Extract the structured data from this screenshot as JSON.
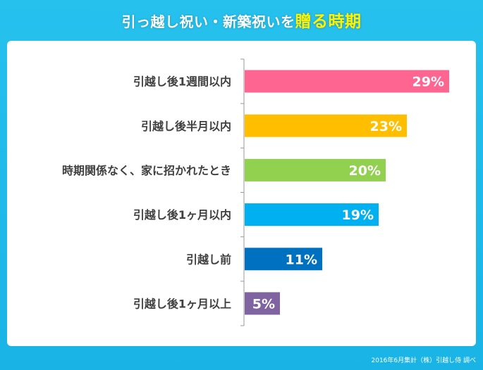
{
  "title": {
    "prefix": "引っ越し祝い・新築祝いを",
    "highlight": "贈る時期",
    "highlight_color": "#fff200"
  },
  "source": "2016年6月集計（株）引越し侍 調べ",
  "colors": {
    "background": "#1cb8e9",
    "panel": "#ffffff",
    "axis": "#999999",
    "label_text": "#404040"
  },
  "chart_data": {
    "type": "bar",
    "orientation": "horizontal",
    "categories": [
      "引越し後1週間以内",
      "引越し後半月以内",
      "時期関係なく、家に招かれたとき",
      "引越し後1ヶ月以内",
      "引越し前",
      "引越し後1ヶ月以上"
    ],
    "values": [
      29,
      23,
      20,
      19,
      11,
      5
    ],
    "value_labels": [
      "29%",
      "23%",
      "20%",
      "19%",
      "11%",
      "5%"
    ],
    "bar_colors": [
      "#ff6591",
      "#ffbf00",
      "#92d050",
      "#00b0f0",
      "#0070c0",
      "#8064a2"
    ],
    "xlim": [
      0,
      30
    ],
    "grid": false,
    "legend": "none"
  }
}
